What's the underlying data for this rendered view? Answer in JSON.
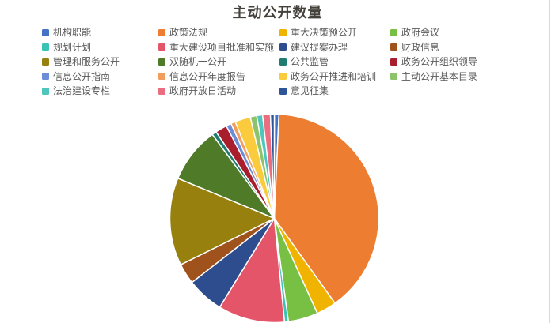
{
  "page": {
    "title": "主动公开数量",
    "background_color": "#ffffff",
    "title_color": "#44403a",
    "legend_text_color": "#5a5a5a",
    "right_border_color": "#d9d9d9"
  },
  "chart_data": {
    "type": "pie",
    "title": "主动公开数量",
    "legend_position": "top",
    "legend_columns": 4,
    "slice_border_color": "#ffffff",
    "slices": [
      {
        "label": "机构职能",
        "value_pct": 0.7,
        "color": "#4472c4"
      },
      {
        "label": "政策法规",
        "value_pct": 39.4,
        "color": "#ed7d31"
      },
      {
        "label": "重大决策预公开",
        "value_pct": 3.1,
        "color": "#f0b400"
      },
      {
        "label": "政府会议",
        "value_pct": 4.6,
        "color": "#78c043"
      },
      {
        "label": "规划计划",
        "value_pct": 0.6,
        "color": "#38c3b4"
      },
      {
        "label": "重大建设项目批准和实施",
        "value_pct": 10.3,
        "color": "#e4556a"
      },
      {
        "label": "建议提案办理",
        "value_pct": 5.7,
        "color": "#2d4d8e"
      },
      {
        "label": "财政信息",
        "value_pct": 3.2,
        "color": "#a0521d"
      },
      {
        "label": "管理和服务公开",
        "value_pct": 13.6,
        "color": "#97800d"
      },
      {
        "label": "双随机一公开",
        "value_pct": 8.6,
        "color": "#4f7a28"
      },
      {
        "label": "公共监管",
        "value_pct": 0.7,
        "color": "#1e7c70"
      },
      {
        "label": "政务公开组织领导",
        "value_pct": 1.8,
        "color": "#a81e2c"
      },
      {
        "label": "信息公开指南",
        "value_pct": 0.8,
        "color": "#6e8dd8"
      },
      {
        "label": "信息公开年度报告",
        "value_pct": 0.7,
        "color": "#f19d5d"
      },
      {
        "label": "政务公开推进和培训",
        "value_pct": 2.4,
        "color": "#facb3d"
      },
      {
        "label": "主动公开基本目录",
        "value_pct": 1.0,
        "color": "#8cc36b"
      },
      {
        "label": "法治建设专栏",
        "value_pct": 0.9,
        "color": "#4ec6bd"
      },
      {
        "label": "政府开放日活动",
        "value_pct": 1.2,
        "color": "#ea6e7f"
      },
      {
        "label": "意见征集",
        "value_pct": 0.6,
        "color": "#2e5597"
      }
    ]
  }
}
